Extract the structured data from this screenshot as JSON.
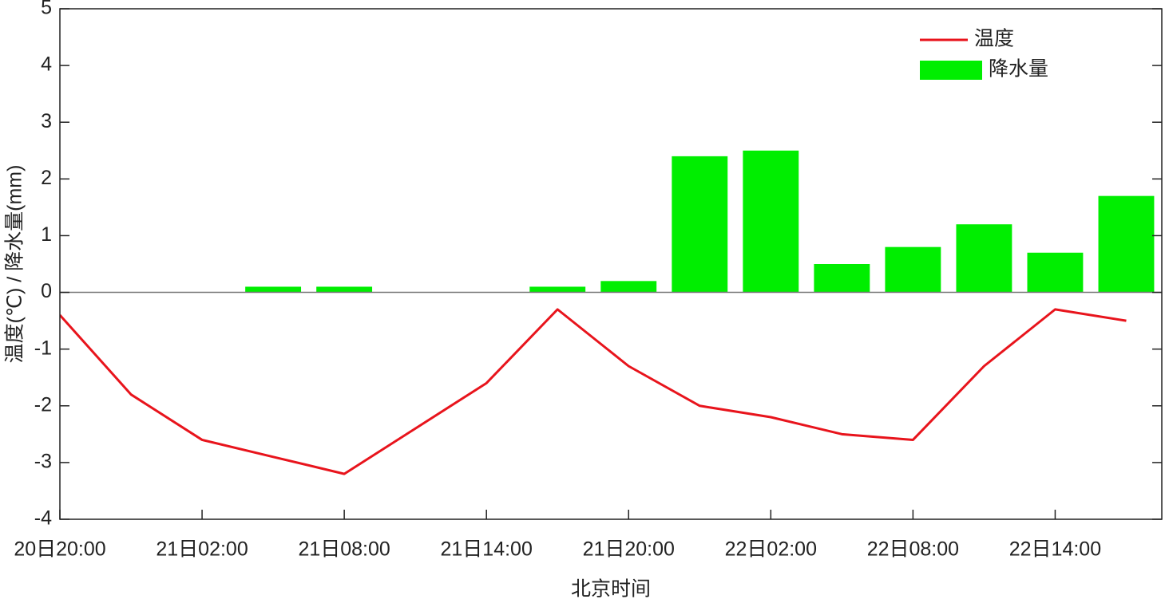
{
  "chart_data": {
    "type": "combo",
    "x_label": "北京时间",
    "y_label": "温度(℃)  /  降水量(mm)",
    "categories": [
      "20日20:00",
      null,
      "21日02:00",
      null,
      "21日08:00",
      null,
      "21日14:00",
      null,
      "21日20:00",
      null,
      "22日02:00",
      null,
      "22日08:00",
      null,
      "22日14:00",
      null
    ],
    "series": [
      {
        "name": "温度",
        "type": "line",
        "color": "#e8141c",
        "values": [
          -0.4,
          -1.8,
          -2.6,
          -2.9,
          -3.2,
          -2.4,
          -1.6,
          -0.3,
          -1.3,
          -2.0,
          -2.2,
          -2.5,
          -2.6,
          -1.3,
          -0.3,
          -0.5
        ]
      },
      {
        "name": "降水量",
        "type": "bar",
        "color": "#00ee00",
        "values": [
          0,
          0,
          0,
          0.1,
          0.1,
          0,
          0,
          0.1,
          0.2,
          2.4,
          2.5,
          0.5,
          0.8,
          1.2,
          0.7,
          1.7
        ]
      }
    ],
    "ylim": [
      -4,
      5
    ],
    "yticks": [
      -4,
      -3,
      -2,
      -1,
      0,
      1,
      2,
      3,
      4,
      5
    ],
    "legend": "upper right"
  }
}
